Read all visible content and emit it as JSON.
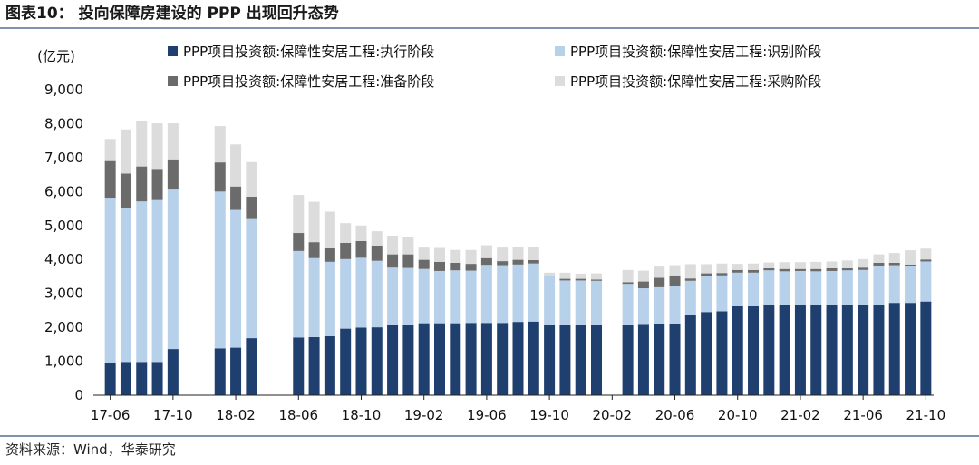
{
  "title": "图表10： 投向保障房建设的 PPP 出现回升态势",
  "source": "资料来源：Wind，华泰研究",
  "chart_data": {
    "type": "bar",
    "stacked": true,
    "unit_label": "(亿元)",
    "ylim": [
      0,
      9000
    ],
    "yticks": [
      "0",
      "1,000",
      "2,000",
      "3,000",
      "4,000",
      "5,000",
      "6,000",
      "7,000",
      "8,000",
      "9,000"
    ],
    "ytick_values": [
      0,
      1000,
      2000,
      3000,
      4000,
      5000,
      6000,
      7000,
      8000,
      9000
    ],
    "xtick_labels": [
      "17-06",
      "17-10",
      "18-02",
      "18-06",
      "18-10",
      "19-02",
      "19-06",
      "19-10",
      "20-02",
      "20-06",
      "20-10",
      "21-02",
      "21-06",
      "21-10"
    ],
    "xtick_every": 4,
    "categories": [
      "17-06",
      "17-07",
      "17-08",
      "17-09",
      "17-10",
      "17-11",
      "17-12",
      "18-01",
      "18-02",
      "18-03",
      "18-04",
      "18-05",
      "18-06",
      "18-07",
      "18-08",
      "18-09",
      "18-10",
      "18-11",
      "18-12",
      "19-01",
      "19-02",
      "19-03",
      "19-04",
      "19-05",
      "19-06",
      "19-07",
      "19-08",
      "19-09",
      "19-10",
      "19-11",
      "19-12",
      "20-01",
      "20-02",
      "20-03",
      "20-04",
      "20-05",
      "20-06",
      "20-07",
      "20-08",
      "20-09",
      "20-10",
      "20-11",
      "20-12",
      "21-01",
      "21-02",
      "21-03",
      "21-04",
      "21-05",
      "21-06",
      "21-07",
      "21-08",
      "21-09",
      "21-10"
    ],
    "series": [
      {
        "name": "PPP项目投资额:保障性安居工程:执行阶段",
        "color": "#1f3f6e",
        "values": [
          950,
          980,
          980,
          980,
          1360,
          null,
          null,
          1380,
          1400,
          1680,
          null,
          null,
          1700,
          1710,
          1740,
          1960,
          1990,
          2000,
          2060,
          2060,
          2120,
          2120,
          2120,
          2130,
          2130,
          2130,
          2160,
          2170,
          2060,
          2060,
          2070,
          2070,
          null,
          2080,
          2100,
          2110,
          2110,
          2350,
          2450,
          2470,
          2620,
          2620,
          2660,
          2660,
          2660,
          2660,
          2670,
          2670,
          2670,
          2670,
          2720,
          2720,
          2760
        ]
      },
      {
        "name": "PPP项目投资额:保障性安居工程:识别阶段",
        "color": "#b8d1ea",
        "values": [
          4870,
          4530,
          4730,
          4770,
          4700,
          null,
          null,
          4620,
          4060,
          3510,
          null,
          null,
          2550,
          2330,
          2190,
          2050,
          2060,
          1960,
          1700,
          1690,
          1600,
          1540,
          1560,
          1540,
          1710,
          1700,
          1690,
          1710,
          1440,
          1320,
          1310,
          1300,
          null,
          1200,
          1050,
          1070,
          1100,
          1020,
          1050,
          1060,
          990,
          990,
          1020,
          990,
          1000,
          990,
          990,
          1010,
          1020,
          1150,
          1110,
          1080,
          1180
        ]
      },
      {
        "name": "PPP项目投资额:保障性安居工程:准备阶段",
        "color": "#6b6b6b",
        "values": [
          1080,
          1020,
          1030,
          920,
          890,
          null,
          null,
          860,
          690,
          660,
          null,
          null,
          530,
          470,
          400,
          480,
          490,
          450,
          390,
          400,
          270,
          270,
          220,
          200,
          200,
          120,
          140,
          100,
          30,
          50,
          50,
          40,
          null,
          50,
          200,
          280,
          320,
          70,
          90,
          70,
          80,
          80,
          60,
          70,
          60,
          70,
          80,
          60,
          70,
          80,
          70,
          50,
          60
        ]
      },
      {
        "name": "PPP项目投资额:保障性安居工程:采购阶段",
        "color": "#dcdcdc",
        "values": [
          650,
          1300,
          1340,
          1340,
          1060,
          null,
          null,
          1070,
          1240,
          1020,
          null,
          null,
          1120,
          1190,
          1080,
          580,
          460,
          420,
          550,
          520,
          360,
          410,
          380,
          410,
          380,
          400,
          380,
          380,
          80,
          180,
          150,
          180,
          null,
          360,
          320,
          330,
          300,
          420,
          270,
          280,
          180,
          190,
          170,
          200,
          200,
          210,
          200,
          230,
          250,
          250,
          290,
          420,
          320
        ]
      }
    ]
  }
}
